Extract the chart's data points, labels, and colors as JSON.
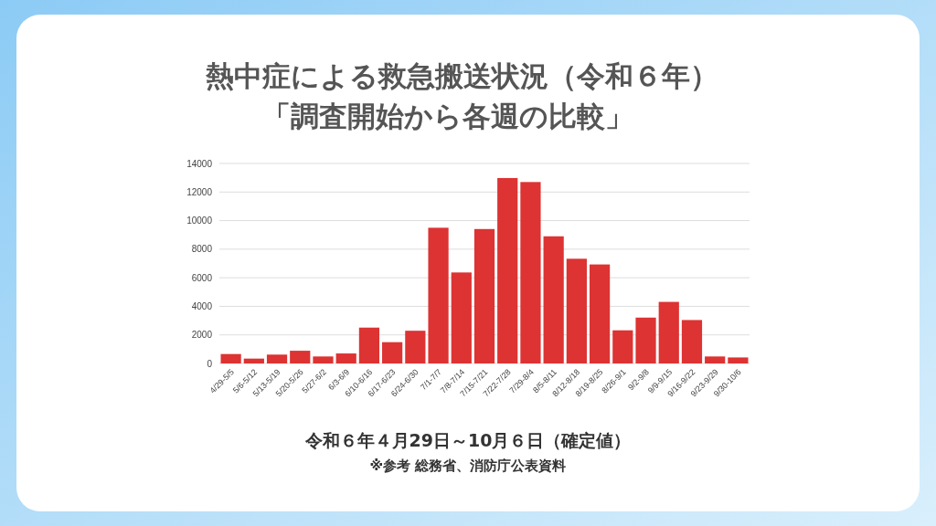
{
  "chart_data": {
    "type": "bar",
    "title": "熱中症による救急搬送状況（令和６年）",
    "subtitle": "「調査開始から各週の比較」",
    "categories": [
      "4/29-5/5",
      "5/6-5/12",
      "5/13-5/19",
      "5/20-5/26",
      "5/27-6/2",
      "6/3-6/9",
      "6/10-6/16",
      "6/17-6/23",
      "6/24-6/30",
      "7/1-7/7",
      "7/8-7/14",
      "7/15-7/21",
      "7/22-7/28",
      "7/29-8/4",
      "8/5-8/11",
      "8/12-8/18",
      "8/19-8/25",
      "8/26-9/1",
      "9/2-9/8",
      "9/9-9/15",
      "9/16-9/22",
      "9/23-9/29",
      "9/30-10/6"
    ],
    "values": [
      660,
      340,
      620,
      890,
      490,
      700,
      2510,
      1490,
      2290,
      9500,
      6370,
      9410,
      12980,
      12700,
      8900,
      7330,
      6930,
      2320,
      3210,
      4310,
      3040,
      490,
      420
    ],
    "color": "#dd3333",
    "ylim": [
      0,
      14000
    ],
    "yticks": [
      0,
      2000,
      4000,
      6000,
      8000,
      10000,
      12000,
      14000
    ],
    "grid": "y",
    "legend": false,
    "annotations": [
      "令和６年４月29日～10月６日（確定値）",
      "※参考 総務省、消防庁公表資料"
    ]
  }
}
